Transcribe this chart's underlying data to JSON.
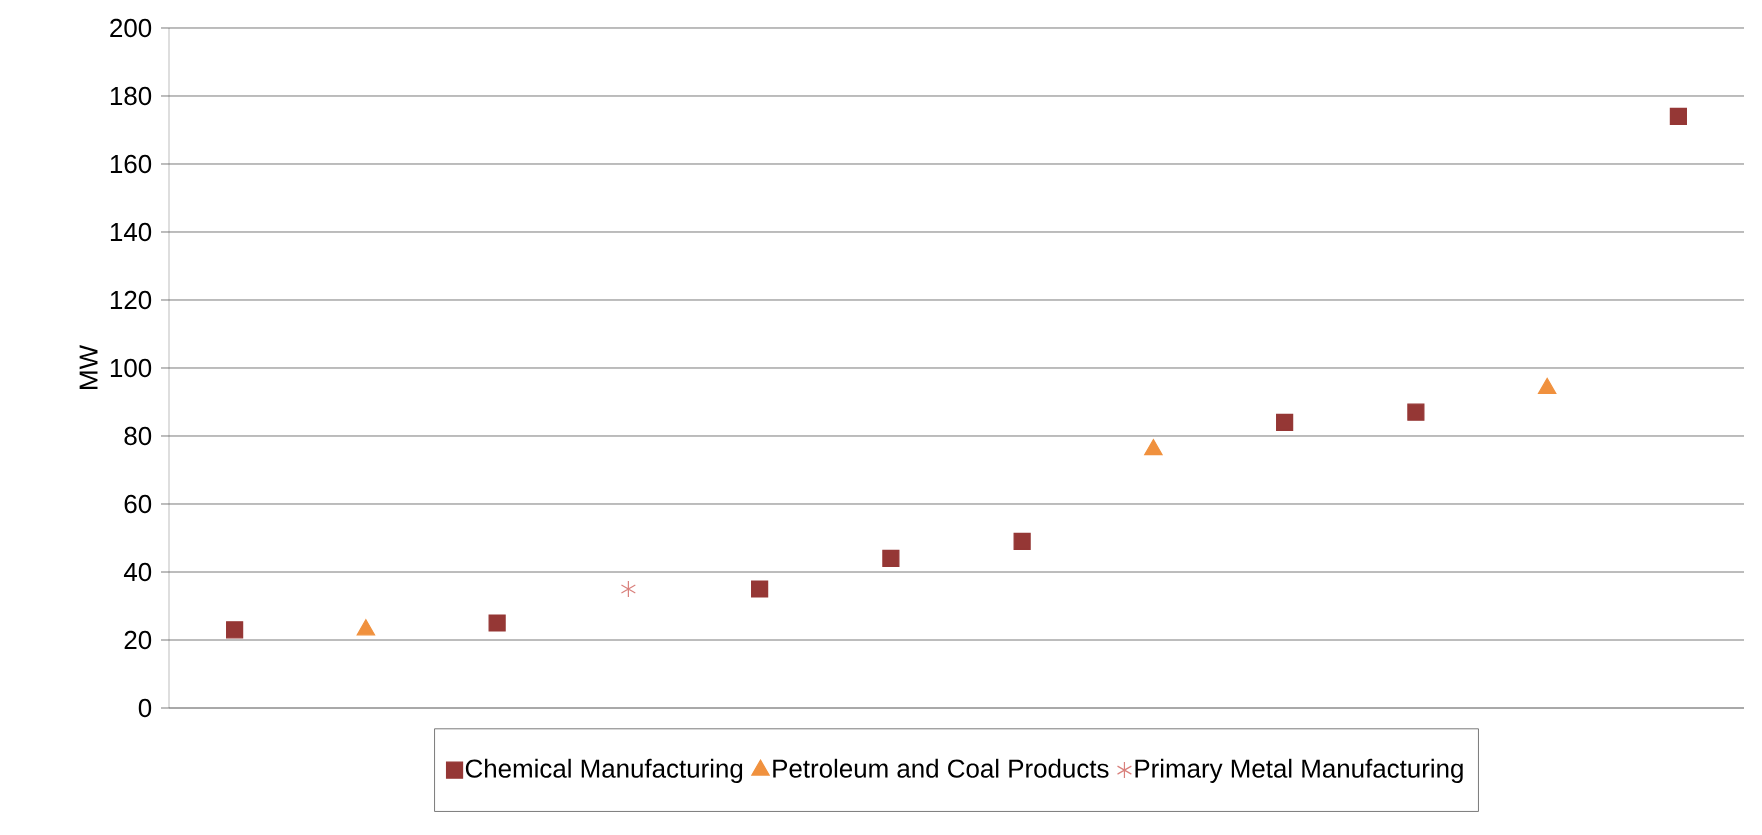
{
  "chart_data": {
    "type": "scatter",
    "ylabel": "MW",
    "categories": [
      null,
      null,
      null,
      null,
      null,
      null,
      null,
      null,
      null,
      null,
      null,
      null
    ],
    "series": [
      {
        "name": "Chemical Manufacturing",
        "color": "#953735",
        "marker": "square",
        "values": [
          23,
          null,
          25,
          null,
          35,
          44,
          49,
          null,
          84,
          87,
          null,
          174
        ]
      },
      {
        "name": "Petroleum and Coal Products",
        "color": "#f0913e",
        "marker": "triangle",
        "values": [
          null,
          23,
          null,
          null,
          null,
          null,
          null,
          76,
          null,
          null,
          94,
          null
        ]
      },
      {
        "name": "Primary Metal Manufacturing",
        "color": "#d9807c",
        "marker": "cross",
        "values": [
          null,
          null,
          null,
          35,
          null,
          null,
          null,
          null,
          null,
          null,
          null,
          null
        ]
      }
    ],
    "ylim": [
      0,
      200
    ],
    "yticks": [
      0,
      20,
      40,
      60,
      80,
      100,
      120,
      140,
      160,
      180,
      200
    ],
    "grid": "y",
    "legend": "bottom",
    "tick_labels": "y"
  }
}
